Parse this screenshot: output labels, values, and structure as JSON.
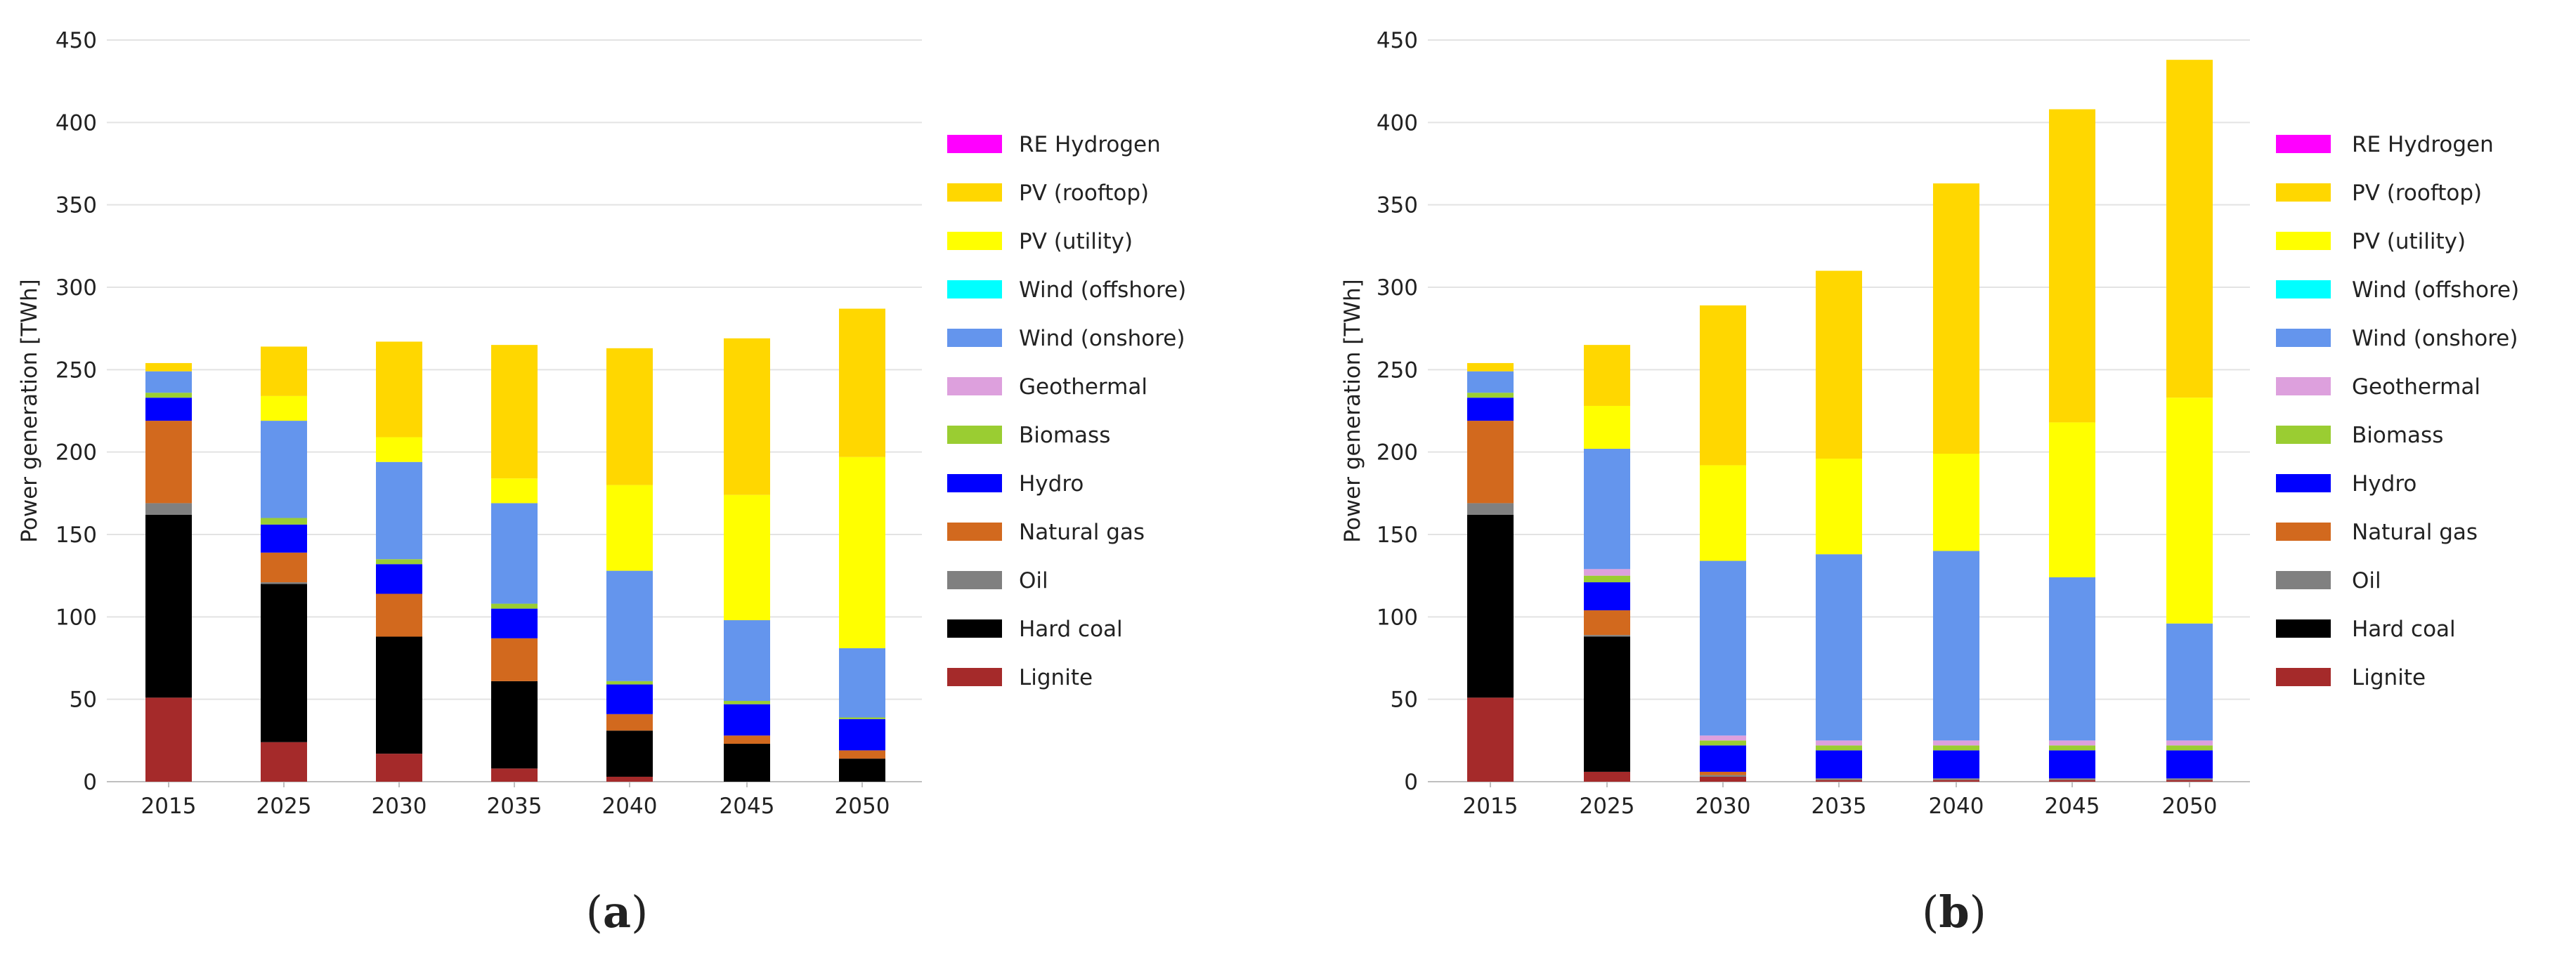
{
  "chart_data": [
    {
      "type": "bar",
      "stacked": true,
      "panel_label": "(a)",
      "panel_letter": "a",
      "ylabel": "Power generation [TWh]",
      "xlabel": "",
      "ylim": [
        0,
        450
      ],
      "yticks": [
        0,
        50,
        100,
        150,
        200,
        250,
        300,
        350,
        400,
        450
      ],
      "grid": true,
      "legend_position": "right",
      "categories": [
        "2015",
        "2025",
        "2030",
        "2035",
        "2040",
        "2045",
        "2050"
      ],
      "series": [
        {
          "name": "Lignite",
          "color": "#A52A2A",
          "values": [
            51,
            24,
            17,
            8,
            3,
            0,
            0
          ]
        },
        {
          "name": "Hard coal",
          "color": "#000000",
          "values": [
            111,
            96,
            71,
            53,
            28,
            23,
            14
          ]
        },
        {
          "name": "Oil",
          "color": "#808080",
          "values": [
            7,
            1,
            0,
            0,
            0,
            0,
            0
          ]
        },
        {
          "name": "Natural gas",
          "color": "#D2691E",
          "values": [
            50,
            18,
            26,
            26,
            10,
            5,
            5
          ]
        },
        {
          "name": "Hydro",
          "color": "#0000FF",
          "values": [
            14,
            17,
            18,
            18,
            18,
            19,
            19
          ]
        },
        {
          "name": "Biomass",
          "color": "#9ACD32",
          "values": [
            3,
            4,
            3,
            3,
            2,
            2,
            1
          ]
        },
        {
          "name": "Geothermal",
          "color": "#DDA0DD",
          "values": [
            0,
            0,
            0,
            0,
            0,
            0,
            0
          ]
        },
        {
          "name": "Wind (onshore)",
          "color": "#6495ED",
          "values": [
            13,
            59,
            59,
            61,
            67,
            49,
            42
          ]
        },
        {
          "name": "Wind (offshore)",
          "color": "#00FFFF",
          "values": [
            0,
            0,
            0,
            0,
            0,
            0,
            0
          ]
        },
        {
          "name": "PV (utility)",
          "color": "#FFFF00",
          "values": [
            0,
            15,
            15,
            15,
            52,
            76,
            116
          ]
        },
        {
          "name": "PV (rooftop)",
          "color": "#FFD700",
          "values": [
            5,
            30,
            58,
            81,
            83,
            95,
            90
          ]
        },
        {
          "name": "RE Hydrogen",
          "color": "#FF00FF",
          "values": [
            0,
            0,
            0,
            0,
            0,
            0,
            0
          ]
        }
      ]
    },
    {
      "type": "bar",
      "stacked": true,
      "panel_label": "(b)",
      "panel_letter": "b",
      "ylabel": "Power generation [TWh]",
      "xlabel": "",
      "ylim": [
        0,
        450
      ],
      "yticks": [
        0,
        50,
        100,
        150,
        200,
        250,
        300,
        350,
        400,
        450
      ],
      "grid": true,
      "legend_position": "right",
      "categories": [
        "2015",
        "2025",
        "2030",
        "2035",
        "2040",
        "2045",
        "2050"
      ],
      "series": [
        {
          "name": "Lignite",
          "color": "#A52A2A",
          "values": [
            51,
            6,
            3,
            1,
            1,
            1,
            1
          ]
        },
        {
          "name": "Hard coal",
          "color": "#000000",
          "values": [
            111,
            82,
            0,
            0,
            0,
            0,
            0
          ]
        },
        {
          "name": "Oil",
          "color": "#808080",
          "values": [
            7,
            1,
            1,
            1,
            1,
            1,
            1
          ]
        },
        {
          "name": "Natural gas",
          "color": "#D2691E",
          "values": [
            50,
            15,
            2,
            0,
            0,
            0,
            0
          ]
        },
        {
          "name": "Hydro",
          "color": "#0000FF",
          "values": [
            14,
            17,
            16,
            17,
            17,
            17,
            17
          ]
        },
        {
          "name": "Biomass",
          "color": "#9ACD32",
          "values": [
            3,
            4,
            3,
            3,
            3,
            3,
            3
          ]
        },
        {
          "name": "Geothermal",
          "color": "#DDA0DD",
          "values": [
            0,
            4,
            3,
            3,
            3,
            3,
            3
          ]
        },
        {
          "name": "Wind (onshore)",
          "color": "#6495ED",
          "values": [
            13,
            73,
            106,
            113,
            115,
            99,
            71
          ]
        },
        {
          "name": "Wind (offshore)",
          "color": "#00FFFF",
          "values": [
            0,
            0,
            0,
            0,
            0,
            0,
            0
          ]
        },
        {
          "name": "PV (utility)",
          "color": "#FFFF00",
          "values": [
            0,
            26,
            58,
            58,
            59,
            94,
            137
          ]
        },
        {
          "name": "PV (rooftop)",
          "color": "#FFD700",
          "values": [
            5,
            37,
            97,
            114,
            164,
            190,
            205
          ]
        },
        {
          "name": "RE Hydrogen",
          "color": "#FF00FF",
          "values": [
            0,
            0,
            0,
            0,
            0,
            0,
            0
          ]
        }
      ]
    }
  ]
}
